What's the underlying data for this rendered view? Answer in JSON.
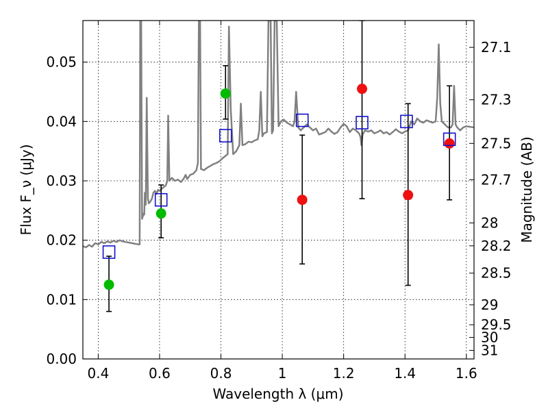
{
  "chart_data": {
    "type": "scatter",
    "xlabel": "Wavelength λ (μm)",
    "ylabel": "Flux F_ν (μJy)",
    "ylabel_right": "Magnitude (AB)",
    "xlim": [
      0.35,
      1.625
    ],
    "ylim": [
      0.0,
      0.057
    ],
    "grid": true,
    "legend": "none",
    "x_ticks": [
      "0.4",
      "0.6",
      "0.8",
      "1",
      "1.2",
      "1.4",
      "1.6"
    ],
    "x_tick_values": [
      0.4,
      0.6,
      0.8,
      1.0,
      1.2,
      1.4,
      1.6
    ],
    "y_ticks": [
      "0.00",
      "0.01",
      "0.02",
      "0.03",
      "0.04",
      "0.05"
    ],
    "y_tick_values": [
      0.0,
      0.01,
      0.02,
      0.03,
      0.04,
      0.05
    ],
    "mag_ticks": [
      {
        "label": "27.1",
        "value": 27.1
      },
      {
        "label": "27.3",
        "value": 27.3
      },
      {
        "label": "27.5",
        "value": 27.5
      },
      {
        "label": "27.7",
        "value": 27.7
      },
      {
        "label": "28",
        "value": 28.0
      },
      {
        "label": "28.2",
        "value": 28.2
      },
      {
        "label": "28.5",
        "value": 28.5
      },
      {
        "label": "29",
        "value": 29.0
      },
      {
        "label": "29.5",
        "value": 29.5
      },
      {
        "label": "30",
        "value": 30.0
      },
      {
        "label": "31",
        "value": 31.0
      }
    ],
    "series": [
      {
        "kind": "line",
        "color": "#808080",
        "points": [
          [
            0.35,
            0.019
          ],
          [
            0.36,
            0.0188
          ],
          [
            0.37,
            0.0192
          ],
          [
            0.38,
            0.0189
          ],
          [
            0.39,
            0.0195
          ],
          [
            0.4,
            0.0193
          ],
          [
            0.41,
            0.0197
          ],
          [
            0.42,
            0.0195
          ],
          [
            0.43,
            0.0198
          ],
          [
            0.44,
            0.0196
          ],
          [
            0.45,
            0.0199
          ],
          [
            0.46,
            0.0197
          ],
          [
            0.47,
            0.02
          ],
          [
            0.48,
            0.0198
          ],
          [
            0.49,
            0.0197
          ],
          [
            0.5,
            0.0196
          ],
          [
            0.51,
            0.0195
          ],
          [
            0.52,
            0.0194
          ],
          [
            0.53,
            0.0193
          ],
          [
            0.535,
            0.0193
          ],
          [
            0.537,
            0.057
          ],
          [
            0.54,
            0.057
          ],
          [
            0.543,
            0.0236
          ],
          [
            0.548,
            0.0245
          ],
          [
            0.55,
            0.0243
          ],
          [
            0.552,
            0.028
          ],
          [
            0.555,
            0.026
          ],
          [
            0.558,
            0.044
          ],
          [
            0.562,
            0.027
          ],
          [
            0.565,
            0.0262
          ],
          [
            0.57,
            0.0265
          ],
          [
            0.575,
            0.027
          ],
          [
            0.58,
            0.028
          ],
          [
            0.585,
            0.0283
          ],
          [
            0.59,
            0.0278
          ],
          [
            0.595,
            0.0285
          ],
          [
            0.6,
            0.0283
          ],
          [
            0.61,
            0.0288
          ],
          [
            0.62,
            0.0292
          ],
          [
            0.625,
            0.03
          ],
          [
            0.628,
            0.041
          ],
          [
            0.632,
            0.03
          ],
          [
            0.64,
            0.0305
          ],
          [
            0.65,
            0.03
          ],
          [
            0.66,
            0.0302
          ],
          [
            0.67,
            0.0298
          ],
          [
            0.68,
            0.0305
          ],
          [
            0.685,
            0.031
          ],
          [
            0.69,
            0.0303
          ],
          [
            0.7,
            0.031
          ],
          [
            0.71,
            0.0312
          ],
          [
            0.72,
            0.0318
          ],
          [
            0.725,
            0.033
          ],
          [
            0.728,
            0.057
          ],
          [
            0.732,
            0.057
          ],
          [
            0.735,
            0.032
          ],
          [
            0.745,
            0.0318
          ],
          [
            0.755,
            0.0322
          ],
          [
            0.765,
            0.0325
          ],
          [
            0.775,
            0.0328
          ],
          [
            0.785,
            0.033
          ],
          [
            0.795,
            0.0333
          ],
          [
            0.805,
            0.0338
          ],
          [
            0.815,
            0.0342
          ],
          [
            0.822,
            0.0345
          ],
          [
            0.826,
            0.056
          ],
          [
            0.832,
            0.042
          ],
          [
            0.84,
            0.0345
          ],
          [
            0.85,
            0.035
          ],
          [
            0.86,
            0.036
          ],
          [
            0.865,
            0.043
          ],
          [
            0.87,
            0.036
          ],
          [
            0.88,
            0.0362
          ],
          [
            0.89,
            0.0366
          ],
          [
            0.9,
            0.0365
          ],
          [
            0.91,
            0.0368
          ],
          [
            0.92,
            0.037
          ],
          [
            0.925,
            0.0385
          ],
          [
            0.93,
            0.045
          ],
          [
            0.935,
            0.0375
          ],
          [
            0.94,
            0.038
          ],
          [
            0.95,
            0.0382
          ],
          [
            0.955,
            0.057
          ],
          [
            0.962,
            0.057
          ],
          [
            0.966,
            0.038
          ],
          [
            0.97,
            0.0385
          ],
          [
            0.975,
            0.057
          ],
          [
            0.982,
            0.057
          ],
          [
            0.988,
            0.0392
          ],
          [
            0.995,
            0.04
          ],
          [
            1.005,
            0.0403
          ],
          [
            1.015,
            0.0398
          ],
          [
            1.025,
            0.0395
          ],
          [
            1.035,
            0.0392
          ],
          [
            1.04,
            0.04
          ],
          [
            1.045,
            0.045
          ],
          [
            1.052,
            0.039
          ],
          [
            1.06,
            0.0385
          ],
          [
            1.07,
            0.039
          ],
          [
            1.08,
            0.0395
          ],
          [
            1.09,
            0.039
          ],
          [
            1.1,
            0.0385
          ],
          [
            1.11,
            0.0388
          ],
          [
            1.12,
            0.0378
          ],
          [
            1.13,
            0.038
          ],
          [
            1.14,
            0.0382
          ],
          [
            1.15,
            0.0388
          ],
          [
            1.16,
            0.0383
          ],
          [
            1.17,
            0.0379
          ],
          [
            1.18,
            0.0382
          ],
          [
            1.19,
            0.039
          ],
          [
            1.2,
            0.0396
          ],
          [
            1.21,
            0.0392
          ],
          [
            1.22,
            0.0382
          ],
          [
            1.23,
            0.0388
          ],
          [
            1.24,
            0.0385
          ],
          [
            1.25,
            0.038
          ],
          [
            1.255,
            0.0374
          ],
          [
            1.258,
            0.036
          ],
          [
            1.262,
            0.0378
          ],
          [
            1.27,
            0.0385
          ],
          [
            1.28,
            0.0383
          ],
          [
            1.29,
            0.0385
          ],
          [
            1.3,
            0.038
          ],
          [
            1.31,
            0.0382
          ],
          [
            1.32,
            0.0385
          ],
          [
            1.33,
            0.038
          ],
          [
            1.34,
            0.0382
          ],
          [
            1.35,
            0.0378
          ],
          [
            1.36,
            0.0382
          ],
          [
            1.37,
            0.0387
          ],
          [
            1.38,
            0.0383
          ],
          [
            1.39,
            0.038
          ],
          [
            1.4,
            0.0383
          ],
          [
            1.41,
            0.0385
          ],
          [
            1.42,
            0.04
          ],
          [
            1.43,
            0.0395
          ],
          [
            1.44,
            0.0405
          ],
          [
            1.45,
            0.04
          ],
          [
            1.46,
            0.0398
          ],
          [
            1.47,
            0.0402
          ],
          [
            1.48,
            0.04
          ],
          [
            1.49,
            0.0398
          ],
          [
            1.5,
            0.04
          ],
          [
            1.505,
            0.044
          ],
          [
            1.51,
            0.053
          ],
          [
            1.515,
            0.043
          ],
          [
            1.52,
            0.04
          ],
          [
            1.53,
            0.0395
          ],
          [
            1.54,
            0.039
          ],
          [
            1.55,
            0.039
          ],
          [
            1.555,
            0.0395
          ],
          [
            1.56,
            0.046
          ],
          [
            1.565,
            0.0395
          ],
          [
            1.57,
            0.039
          ],
          [
            1.58,
            0.0385
          ],
          [
            1.59,
            0.039
          ],
          [
            1.6,
            0.0392
          ],
          [
            1.625,
            0.039
          ]
        ]
      },
      {
        "kind": "points",
        "marker": "circle",
        "color": "#00bb00",
        "points": [
          {
            "x": 0.435,
            "y": 0.0125,
            "err_low": 0.008,
            "err_high": 0.0173
          },
          {
            "x": 0.605,
            "y": 0.0245,
            "err_low": 0.0204,
            "err_high": 0.0293
          },
          {
            "x": 0.815,
            "y": 0.0447,
            "err_low": 0.0404,
            "err_high": 0.0494
          }
        ]
      },
      {
        "kind": "points",
        "marker": "circle",
        "color": "#ee1111",
        "points": [
          {
            "x": 1.065,
            "y": 0.0268,
            "err_low": 0.016,
            "err_high": 0.0377
          },
          {
            "x": 1.26,
            "y": 0.0455,
            "err_low": 0.027,
            "err_high": 0.057
          },
          {
            "x": 1.41,
            "y": 0.0276,
            "err_low": 0.0124,
            "err_high": 0.043
          },
          {
            "x": 1.545,
            "y": 0.0363,
            "err_low": 0.0268,
            "err_high": 0.046
          }
        ]
      },
      {
        "kind": "points",
        "marker": "open-square",
        "color": "#1010cc",
        "points": [
          {
            "x": 0.435,
            "y": 0.018
          },
          {
            "x": 0.605,
            "y": 0.0268
          },
          {
            "x": 0.815,
            "y": 0.0376
          },
          {
            "x": 1.065,
            "y": 0.0402
          },
          {
            "x": 1.26,
            "y": 0.0398
          },
          {
            "x": 1.405,
            "y": 0.04
          },
          {
            "x": 1.545,
            "y": 0.037
          }
        ]
      }
    ]
  }
}
